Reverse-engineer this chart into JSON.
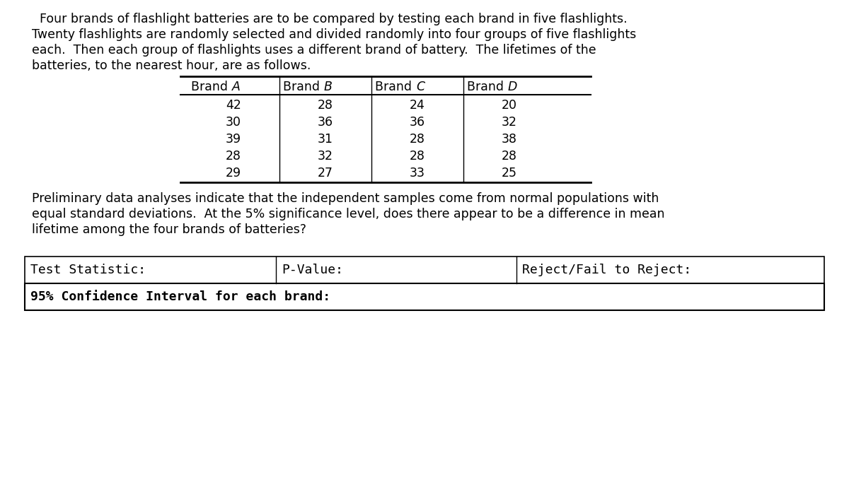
{
  "intro_text_lines": [
    "  Four brands of flashlight batteries are to be compared by testing each brand in five flashlights.",
    "Twenty flashlights are randomly selected and divided randomly into four groups of five flashlights",
    "each.  Then each group of flashlights uses a different brand of battery.  The lifetimes of the",
    "batteries, to the nearest hour, are as follows."
  ],
  "brand_headers": [
    "Brand A",
    "Brand B",
    "Brand C",
    "Brand D"
  ],
  "brand_data": [
    [
      42,
      30,
      39,
      28,
      29
    ],
    [
      28,
      36,
      31,
      32,
      27
    ],
    [
      24,
      36,
      28,
      28,
      33
    ],
    [
      20,
      32,
      38,
      28,
      25
    ]
  ],
  "prelim_text_lines": [
    "Preliminary data analyses indicate that the independent samples come from normal populations with",
    "equal standard deviations.  At the 5% significance level, does there appear to be a difference in mean",
    "lifetime among the four brands of batteries?"
  ],
  "test_statistic_label": "Test Statistic:",
  "pvalue_label": "P-Value:",
  "reject_label": "Reject/Fail to Reject:",
  "ci_label": "95% Confidence Interval for each brand:",
  "bg_color": "#ffffff",
  "text_color": "#000000",
  "font_size_body": 12.5,
  "font_size_table": 12.5,
  "font_size_mono": 13.0
}
